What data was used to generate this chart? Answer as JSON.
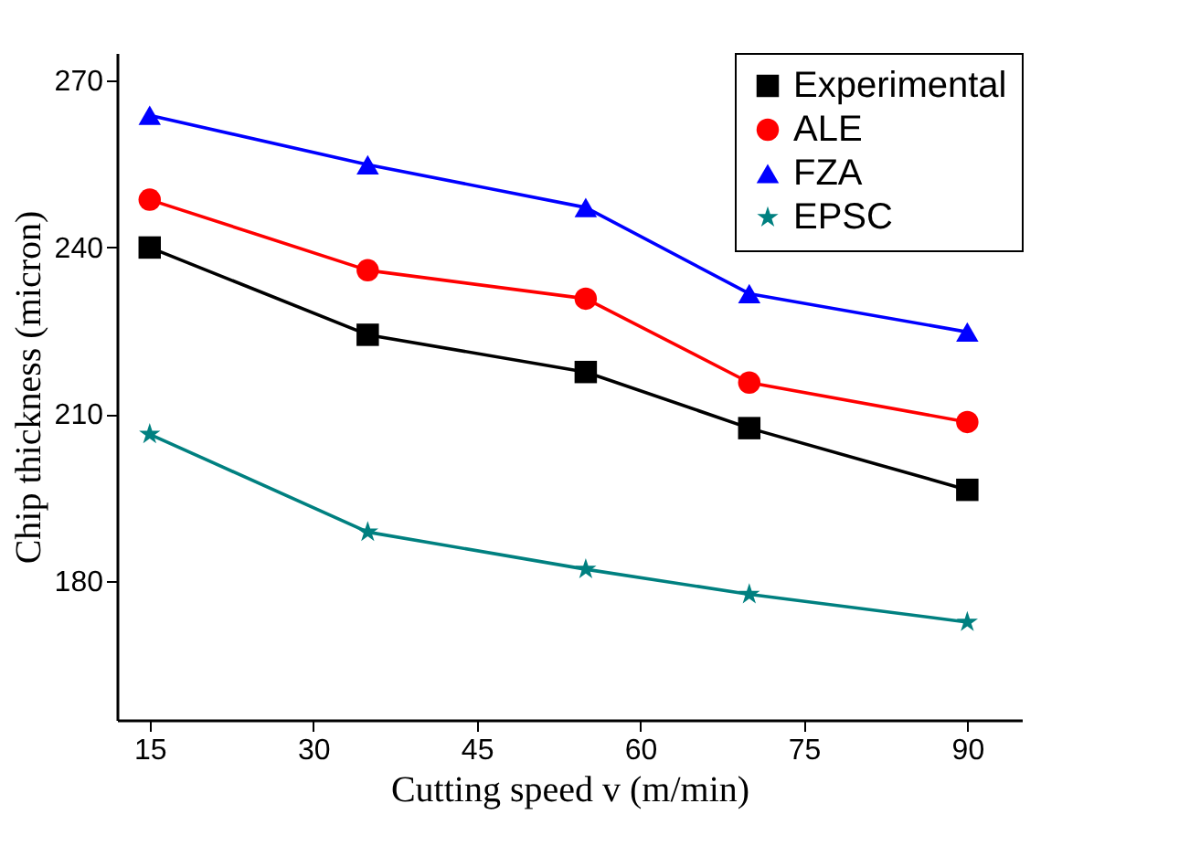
{
  "chart_data": {
    "type": "line",
    "xlabel": "Cutting speed v (m/min)",
    "ylabel": "Chip thickness (micron)",
    "x": [
      15,
      35,
      55,
      70,
      90
    ],
    "series": [
      {
        "name": "Experimental",
        "color": "#000000",
        "marker": "square",
        "values": [
          240,
          224.3,
          217.6,
          207.5,
          196.4
        ]
      },
      {
        "name": "ALE",
        "color": "#ff0000",
        "marker": "circle",
        "values": [
          248.6,
          235.9,
          230.8,
          215.7,
          208.6
        ]
      },
      {
        "name": "FZA",
        "color": "#0000ff",
        "marker": "triangle",
        "values": [
          263.8,
          254.9,
          247.2,
          231.7,
          224.8
        ]
      },
      {
        "name": "EPSC",
        "color": "#008080",
        "marker": "star",
        "values": [
          206.4,
          188.8,
          182.1,
          177.6,
          172.6
        ]
      }
    ],
    "xlim": [
      12,
      95
    ],
    "xticks": [
      15,
      30,
      45,
      60,
      75,
      90
    ],
    "ylim": [
      155,
      275
    ],
    "yticks": [
      180,
      210,
      240,
      270
    ],
    "grid": false,
    "legend": "top right",
    "line_style": "solid"
  }
}
